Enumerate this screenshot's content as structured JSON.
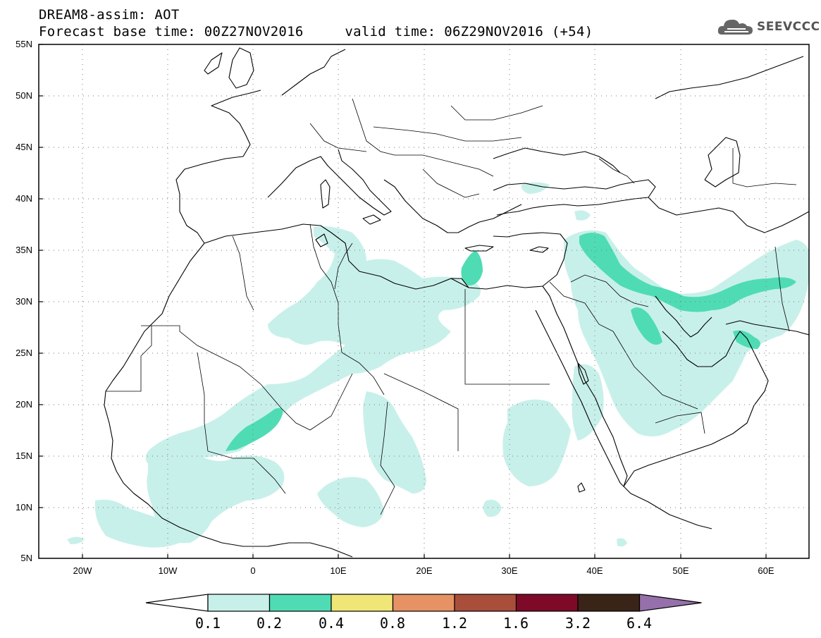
{
  "header": {
    "line1": "DREAM8-assim: AOT",
    "line2": "Forecast base time: 00Z27NOV2016     valid time: 06Z29NOV2016 (+54)",
    "logo_text": "SEEVCCC"
  },
  "map": {
    "lon_range": [
      -25,
      65
    ],
    "lat_range": [
      5,
      55
    ],
    "lat_labels": [
      "55N",
      "50N",
      "45N",
      "40N",
      "35N",
      "30N",
      "25N",
      "20N",
      "15N",
      "10N",
      "5N"
    ],
    "lon_labels": [
      "20W",
      "10W",
      "0",
      "10E",
      "20E",
      "30E",
      "40E",
      "50E",
      "60E"
    ],
    "grid": "dotted"
  },
  "colorbar": {
    "labels": [
      "0.1",
      "0.2",
      "0.4",
      "0.8",
      "1.2",
      "1.6",
      "3.2",
      "6.4"
    ],
    "colors": [
      "#ffffff",
      "#c8f0ea",
      "#4fdcb4",
      "#f0e678",
      "#e69264",
      "#aa4e3c",
      "#7e0a28",
      "#3a2418",
      "#9670aa"
    ]
  }
}
